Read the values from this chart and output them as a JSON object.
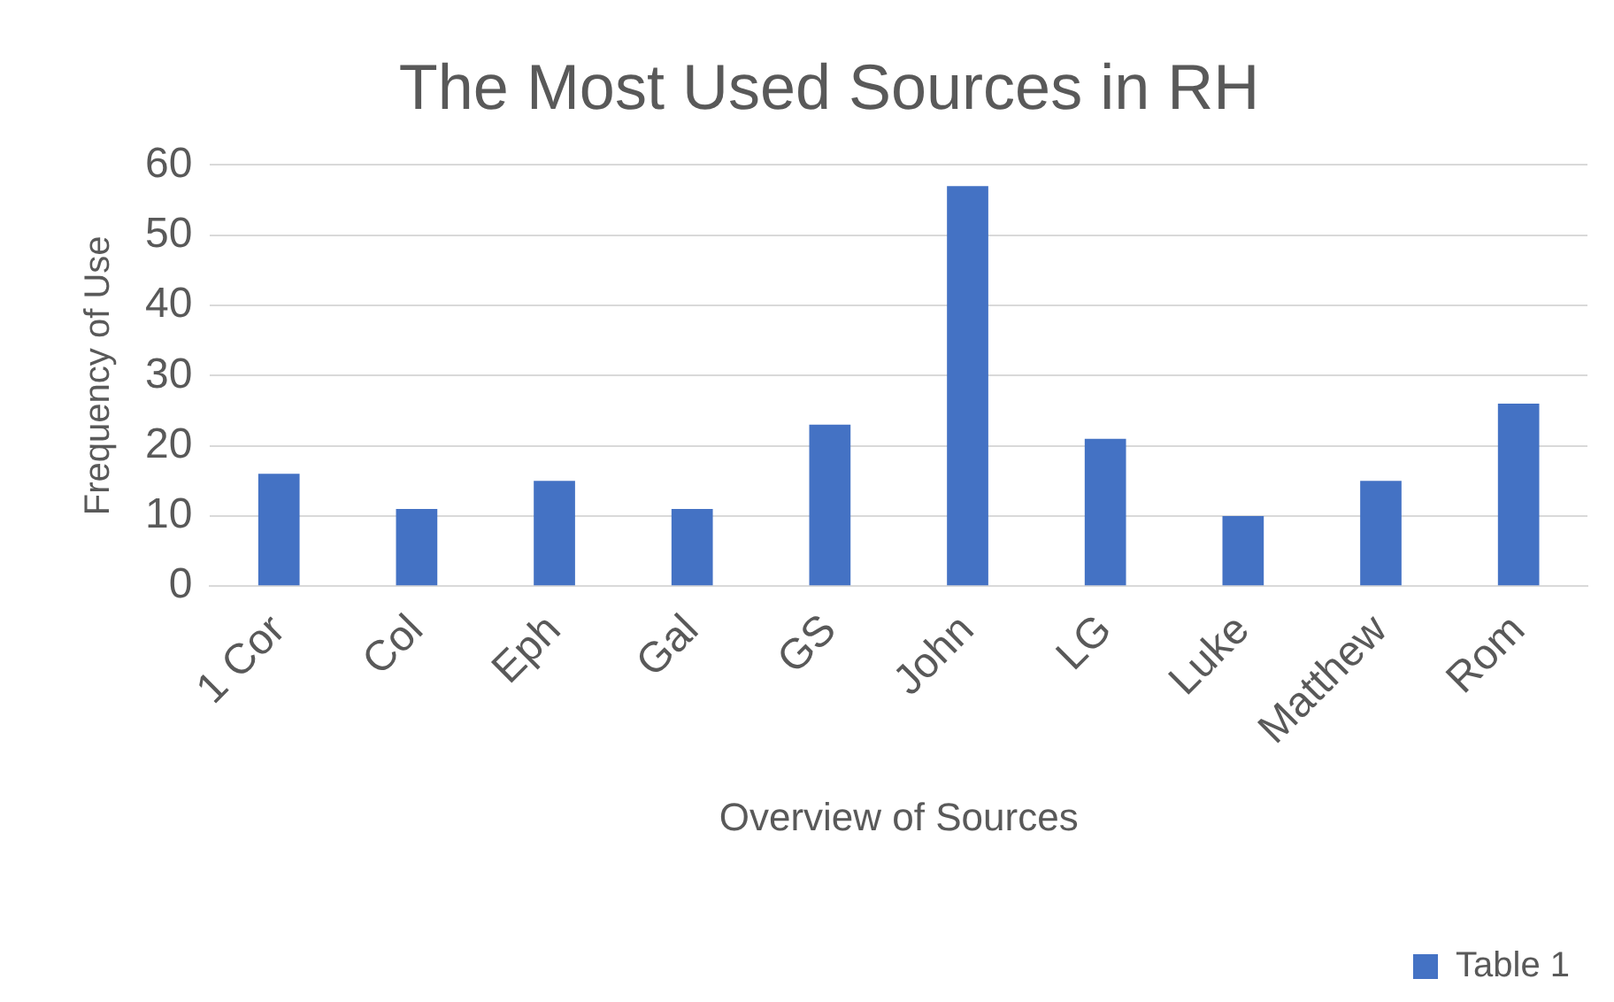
{
  "chart_data": {
    "type": "bar",
    "title": "The Most Used Sources in RH",
    "xlabel": "Overview of Sources",
    "ylabel": "Frequency of Use",
    "categories": [
      "1 Cor",
      "Col",
      "Eph",
      "Gal",
      "GS",
      "John",
      "LG",
      "Luke",
      "Matthew",
      "Rom"
    ],
    "series": [
      {
        "name": "Table 1",
        "color": "#4472c4",
        "values": [
          16,
          11,
          15,
          11,
          23,
          57,
          21,
          10,
          15,
          26
        ]
      }
    ],
    "ylim": [
      0,
      60
    ],
    "yticks": [
      0,
      10,
      20,
      30,
      40,
      50,
      60
    ],
    "grid": "y",
    "legend": "bottom right"
  }
}
